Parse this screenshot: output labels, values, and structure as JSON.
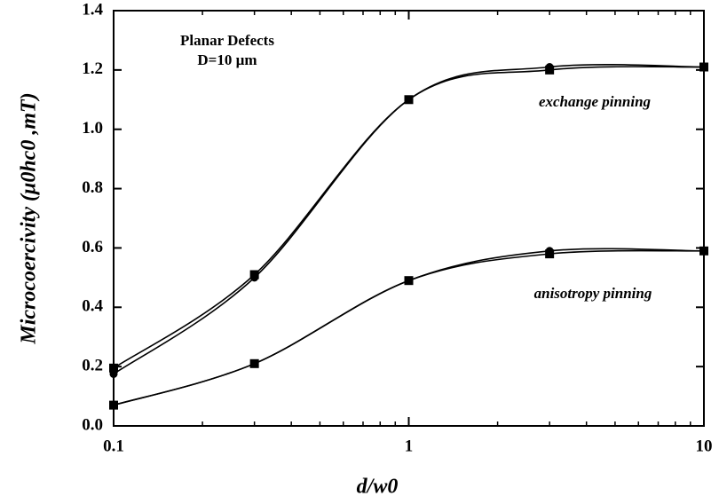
{
  "chart_data": {
    "type": "line",
    "x_label": "d/w0",
    "y_label": "Microcoercivity (μ0hc0 ,mT)",
    "annotations": [
      "Planar Defects",
      "D=10 µm",
      "exchange pinning",
      "anisotropy pinning"
    ],
    "x": [
      0.1,
      0.3,
      1,
      3,
      10
    ],
    "series": [
      {
        "marker": "square",
        "color": "#000000",
        "values": [
          0.195,
          0.51,
          1.1,
          1.2,
          1.21
        ]
      },
      {
        "marker": "circle",
        "color": "#000000",
        "values": [
          0.175,
          0.5,
          1.1,
          1.21,
          1.21
        ]
      },
      {
        "marker": "square",
        "color": "#000000",
        "values": [
          0.07,
          0.21,
          0.49,
          0.58,
          0.59
        ]
      },
      {
        "marker": "circle",
        "color": "#000000",
        "values": [
          0.07,
          0.21,
          0.49,
          0.59,
          0.59
        ]
      }
    ],
    "xlog": true,
    "xlim": [
      0.1,
      10
    ],
    "xticks": [
      0.1,
      1,
      10
    ],
    "xminorticks": [
      0.2,
      0.3,
      0.4,
      0.5,
      0.6,
      0.7,
      0.8,
      0.9,
      2,
      3,
      4,
      5,
      6,
      7,
      8,
      9
    ],
    "ylim": [
      0,
      1.4
    ],
    "yticks": [
      {
        "value": 0,
        "label": "0.0"
      },
      0.2,
      0.4,
      0.6,
      0.8,
      {
        "value": 1,
        "label": "1.0"
      },
      1.2,
      1.4
    ],
    "grid": false
  }
}
